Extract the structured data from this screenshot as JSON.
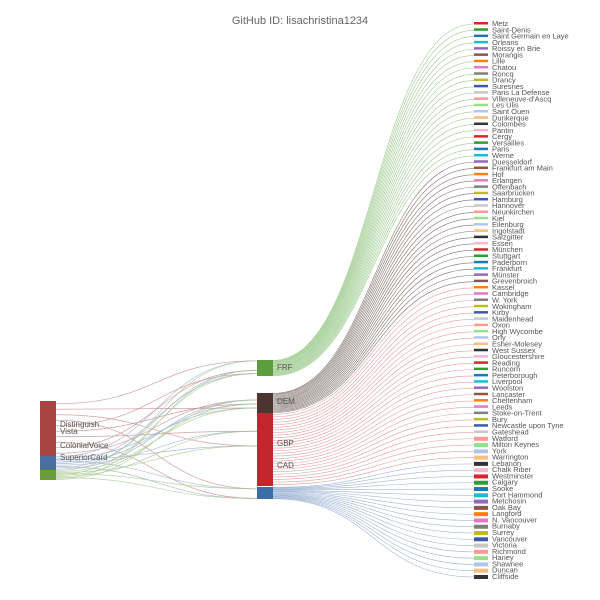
{
  "header": {
    "title": "GitHub ID: lisachristina1234"
  },
  "chart_data": {
    "type": "sankey",
    "sources": [
      {
        "label": "Distinguish",
        "color": "#a94442"
      },
      {
        "label": "Vista",
        "color": "#a94442"
      },
      {
        "label": "ColonialVoice",
        "color": "#4a6fa5"
      },
      {
        "label": "SuperiorCard",
        "color": "#4a6fa5"
      },
      {
        "label": "",
        "color": "#6a9a3a"
      }
    ],
    "currencies": [
      {
        "label": "FRF",
        "color": "#5a9e3e"
      },
      {
        "label": "DEM",
        "color": "#4e342e"
      },
      {
        "label": "GBP",
        "color": "#c0282d"
      },
      {
        "label": "CAD",
        "color": "#c0282d"
      },
      {
        "label": "",
        "color": "#3a6ea5"
      }
    ],
    "cities": [
      "Metz",
      "Saint-Denis",
      "Saint Germain en Laye",
      "Orleans",
      "Roissy en Brie",
      "Morangis",
      "Lille",
      "Chatou",
      "Roncq",
      "Drancy",
      "Suresnes",
      "Paris La Defense",
      "Villeneuve-d'Ascq",
      "Les Ulis",
      "Saint Ouen",
      "Dunkerque",
      "Colombes",
      "Pantin",
      "Cergy",
      "Versailles",
      "Paris",
      "Werne",
      "Duesseldorf",
      "Frankfurt am Main",
      "Hof",
      "Erlangen",
      "Offenbach",
      "Saarbrücken",
      "Hamburg",
      "Hannover",
      "Neunkirchen",
      "Kiel",
      "Eilenburg",
      "Ingolstadt",
      "Salzgitter",
      "Essen",
      "München",
      "Stuttgart",
      "Paderborn",
      "Frankfurt",
      "Münster",
      "Grevenbroich",
      "Kassel",
      "Cambridge",
      "W. York",
      "Wokingham",
      "Kirby",
      "Maidenhead",
      "Oxon",
      "High Wycombe",
      "Orly",
      "Esher-Molesey",
      "West Sussex",
      "Gloucestershire",
      "Reading",
      "Runcorn",
      "Peterborough",
      "Liverpool",
      "Woolston",
      "Lancaster",
      "Cheltenham",
      "Leeds",
      "Stoke-on-Trent",
      "Bury",
      "Newcastle upon Tyne",
      "Gateshead",
      "Watford",
      "Milton Keynes",
      "York",
      "Warrington",
      "Lebanon",
      "Chalk Riber",
      "Westminster",
      "Calgary",
      "Sooke",
      "Port Hammond",
      "Metchosin",
      "Oak Bay",
      "Langford",
      "N. Vancouver",
      "Burnaby",
      "Surrey",
      "Vancouver",
      "Victoria",
      "Richmond",
      "Haney",
      "Shawnee",
      "Duncan",
      "Cliffside"
    ]
  }
}
